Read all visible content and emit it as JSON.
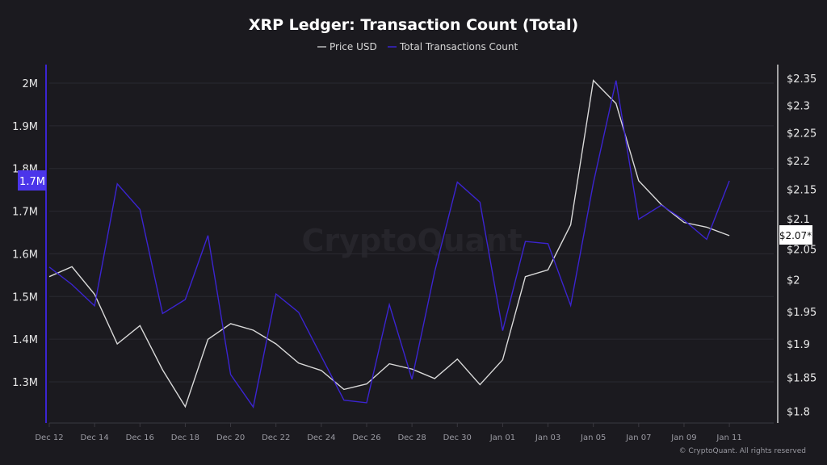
{
  "chart_data": {
    "type": "line",
    "title": "XRP Ledger: Transaction Count (Total)",
    "legend_position": "top-center",
    "grid": true,
    "x": [
      "Dec 12",
      "Dec 13",
      "Dec 14",
      "Dec 15",
      "Dec 16",
      "Dec 17",
      "Dec 18",
      "Dec 19",
      "Dec 20",
      "Dec 21",
      "Dec 22",
      "Dec 23",
      "Dec 24",
      "Dec 25",
      "Dec 26",
      "Dec 27",
      "Dec 28",
      "Dec 29",
      "Dec 30",
      "Dec 31",
      "Jan 01",
      "Jan 02",
      "Jan 03",
      "Jan 04",
      "Jan 05",
      "Jan 06",
      "Jan 07",
      "Jan 08",
      "Jan 09",
      "Jan 10",
      "Jan 11"
    ],
    "x_tick_labels": [
      "Dec 12",
      "Dec 14",
      "Dec 16",
      "Dec 18",
      "Dec 20",
      "Dec 22",
      "Dec 24",
      "Dec 26",
      "Dec 28",
      "Dec 30",
      "Jan 01",
      "Jan 03",
      "Jan 05",
      "Jan 07",
      "Jan 09",
      "Jan 11"
    ],
    "series": [
      {
        "name": "Price USD",
        "axis": "right",
        "color": "#d9d9d9",
        "values": [
          2.005,
          2.021,
          1.977,
          1.9,
          1.928,
          1.861,
          1.807,
          1.907,
          1.931,
          1.921,
          1.9,
          1.871,
          1.86,
          1.832,
          1.84,
          1.87,
          1.862,
          1.848,
          1.877,
          1.839,
          1.876,
          2.005,
          2.016,
          2.09,
          2.346,
          2.303,
          2.165,
          2.124,
          2.094,
          2.086,
          2.072
        ]
      },
      {
        "name": "Total Transactions Count",
        "axis": "left",
        "color": "#3b24d0",
        "values": [
          1569000,
          1528000,
          1478000,
          1764000,
          1704000,
          1460000,
          1493000,
          1643000,
          1317000,
          1241000,
          1506000,
          1463000,
          1360000,
          1257000,
          1251000,
          1481000,
          1306000,
          1558000,
          1768000,
          1721000,
          1420000,
          1629000,
          1624000,
          1479000,
          1766000,
          2006000,
          1681000,
          1714000,
          1679000,
          1634000,
          1771000
        ]
      }
    ],
    "y_left": {
      "ticks": [
        "1.3M",
        "1.4M",
        "1.5M",
        "1.6M",
        "1.7M",
        "1.8M",
        "1.9M",
        "2M"
      ],
      "tick_values": [
        1300000,
        1400000,
        1500000,
        1600000,
        1700000,
        1800000,
        1900000,
        2000000
      ],
      "range": [
        1200000,
        2040000
      ],
      "current_label": "1.7M",
      "current_color": "#4b35ea"
    },
    "y_right": {
      "scale": "log",
      "ticks": [
        "$1.8",
        "$1.85",
        "$1.9",
        "$1.95",
        "$2",
        "$2.05",
        "$2.1",
        "$2.15",
        "$2.2",
        "$2.25",
        "$2.3",
        "$2.35"
      ],
      "tick_values": [
        1.8,
        1.85,
        1.9,
        1.95,
        2.0,
        2.05,
        2.1,
        2.15,
        2.2,
        2.25,
        2.3,
        2.35
      ],
      "current_label": "$2.07*"
    }
  },
  "watermark": "CryptoQuant",
  "credit": "© CryptoQuant. All rights reserved"
}
